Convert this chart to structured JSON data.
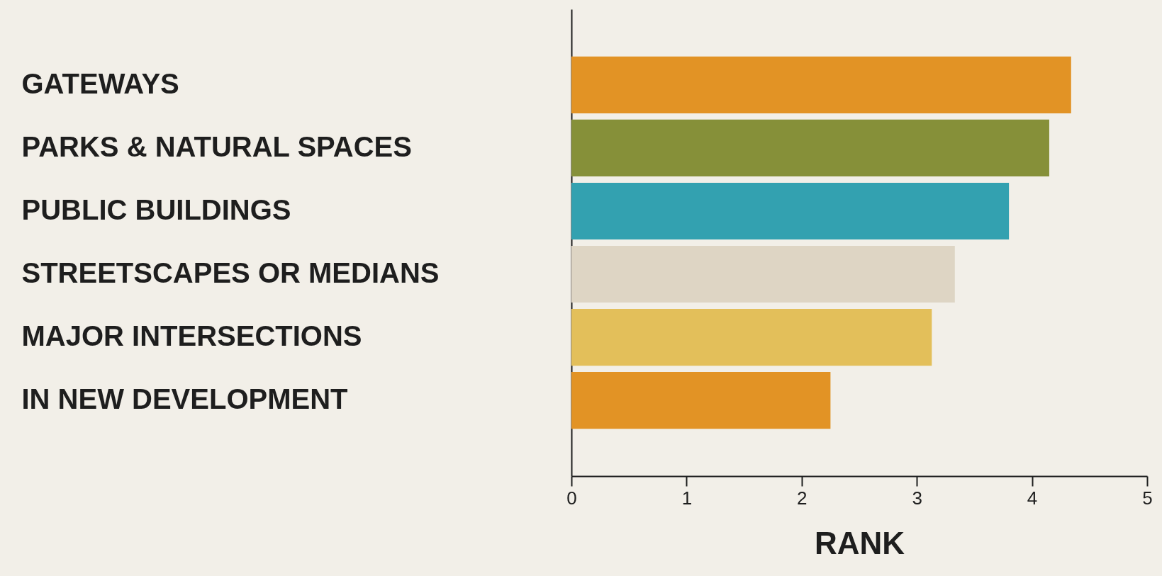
{
  "chart_data": {
    "type": "bar",
    "orientation": "horizontal",
    "xlabel": "RANK",
    "categories": [
      "GATEWAYS",
      "PARKS & NATURAL SPACES",
      "PUBLIC BUILDINGS",
      "STREETSCAPES OR MEDIANS",
      "MAJOR INTERSECTIONS",
      "IN NEW DEVELOPMENT"
    ],
    "values": [
      4.34,
      4.15,
      3.8,
      3.33,
      3.13,
      2.25
    ],
    "colors": [
      "#e29325",
      "#869039",
      "#33a1b0",
      "#ded5c4",
      "#e3bf5a",
      "#e29325"
    ],
    "xlim": [
      0,
      5
    ],
    "xticks": [
      0,
      1,
      2,
      3,
      4,
      5
    ],
    "grid": false
  }
}
